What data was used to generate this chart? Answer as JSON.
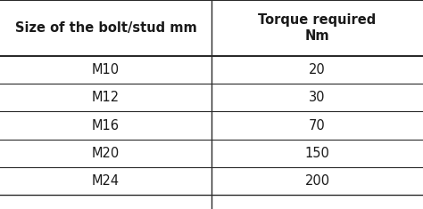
{
  "col1_header": "Size of the bolt/stud mm",
  "col2_header_line1": "Torque required\nNm",
  "rows": [
    [
      "M10",
      "20"
    ],
    [
      "M12",
      "30"
    ],
    [
      "M16",
      "70"
    ],
    [
      "M20",
      "150"
    ],
    [
      "M24",
      "200"
    ]
  ],
  "bg_color": "#ffffff",
  "text_color": "#1a1a1a",
  "line_color": "#2a2a2a",
  "header_fontsize": 10.5,
  "cell_fontsize": 10.5,
  "col_split": 0.5,
  "figwidth": 4.74,
  "figheight": 2.35,
  "dpi": 100
}
